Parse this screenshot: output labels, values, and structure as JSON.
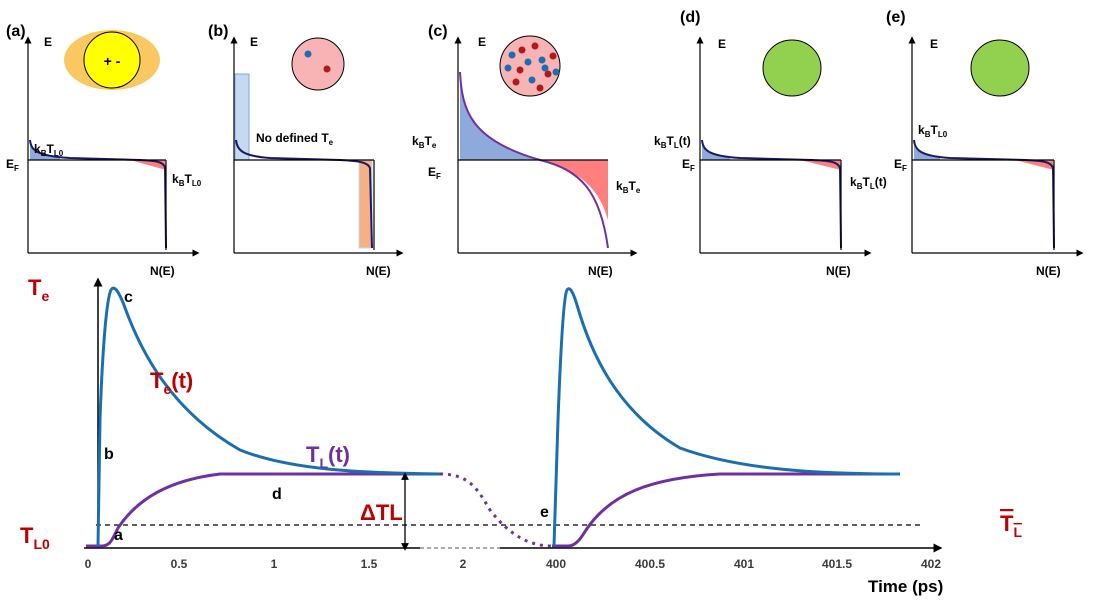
{
  "panels": [
    {
      "tag": "(a)",
      "energy_axis": "E",
      "dos_axis": "N(E)",
      "label_left": "kBTL0",
      "label_right": "kBTL0",
      "fermi": "EF"
    },
    {
      "tag": "(b)",
      "energy_axis": "E",
      "dos_axis": "N(E)",
      "note": "No defined Te"
    },
    {
      "tag": "(c)",
      "energy_axis": "E",
      "dos_axis": "N(E)",
      "label_left": "kBTe",
      "label_right": "kBTe",
      "fermi": "EF"
    },
    {
      "tag": "(d)",
      "energy_axis": "E",
      "dos_axis": "N(E)",
      "label_left": "kBTL(t)",
      "label_right": "kBTL(t)",
      "fermi": "EF"
    },
    {
      "tag": "(e)",
      "energy_axis": "E",
      "dos_axis": "N(E)",
      "label_left": "kBTL0",
      "fermi": "EF"
    }
  ],
  "chart": {
    "y_label": "Te",
    "x_label": "Time (ps)",
    "te_curve": "Te(t)",
    "tl_curve": "TL(t)",
    "delta_label": "ΔTL",
    "tl0_label": "TL0",
    "tl_avg_label": "TL",
    "points": [
      "a",
      "b",
      "c",
      "d",
      "e"
    ],
    "ticks": [
      "0",
      "0.5",
      "1",
      "1.5",
      "2",
      "400",
      "400.5",
      "401",
      "401.5",
      "402"
    ]
  },
  "colors": {
    "te": "#1a6fb0",
    "tl": "#7030a0",
    "dark_red": "#c00000",
    "fill_blue": "#8ea9db",
    "fill_red": "#ff7f7f",
    "green": "#92d050",
    "orange_halo": "#fac860",
    "yellow": "#ffff00",
    "pink": "#f8b4b4"
  },
  "chart_data": {
    "type": "line",
    "series": [
      {
        "name": "Te(t)",
        "x": [
          0.07,
          0.1,
          0.14,
          0.2,
          0.3,
          0.5,
          0.8,
          1.2,
          1.85,
          400,
          400.05,
          400.2,
          400.5,
          401,
          401.8
        ],
        "y": [
          0.02,
          0.75,
          1.0,
          0.9,
          0.72,
          0.48,
          0.31,
          0.26,
          0.25,
          0.02,
          1.0,
          0.7,
          0.4,
          0.27,
          0.25
        ]
      },
      {
        "name": "TL(t)",
        "x": [
          0.07,
          0.15,
          0.3,
          0.5,
          0.8,
          1.2,
          1.85,
          400.05,
          400.3,
          400.6,
          401,
          401.8
        ],
        "y": [
          0.0,
          0.03,
          0.14,
          0.21,
          0.24,
          0.25,
          0.25,
          0.0,
          0.12,
          0.22,
          0.245,
          0.25
        ]
      }
    ]
  }
}
